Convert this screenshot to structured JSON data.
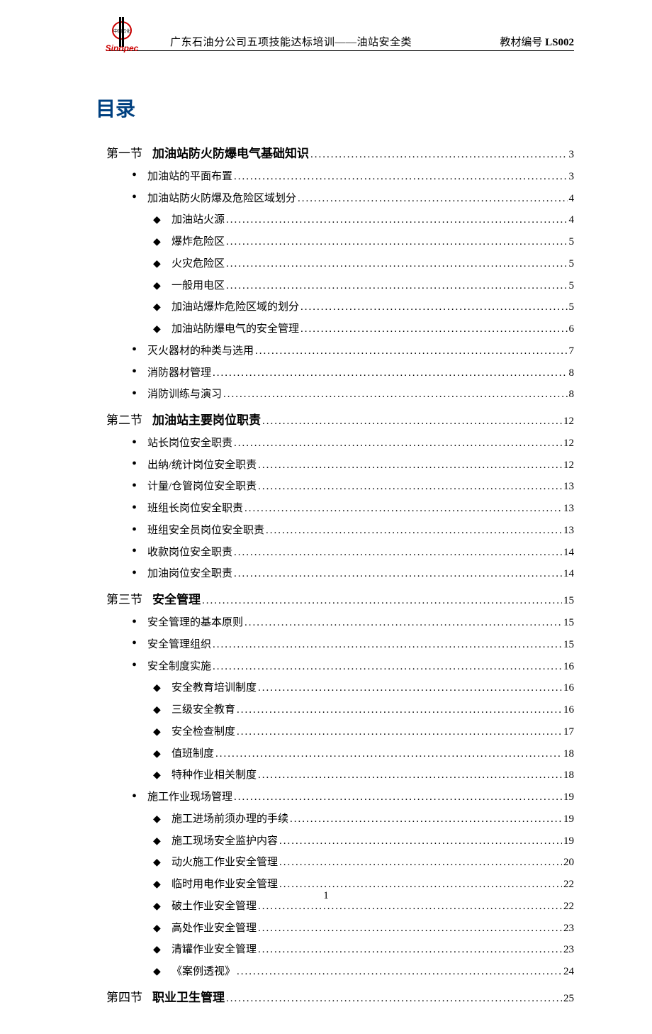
{
  "header": {
    "title": "广东石油分公司五项技能达标培训——油站安全类",
    "doc_label": "教材编号",
    "doc_code": "LS002"
  },
  "toc_title": "目录",
  "page_number": "1",
  "sections": [
    {
      "label": "第一节",
      "title": "加油站防火防爆电气基础知识",
      "page": "3",
      "items": [
        {
          "title": "加油站的平面布置",
          "page": "3"
        },
        {
          "title": "加油站防火防爆及危险区域划分",
          "page": "4",
          "children": [
            {
              "title": "加油站火源",
              "page": "4"
            },
            {
              "title": "爆炸危险区",
              "page": "5"
            },
            {
              "title": "火灾危险区",
              "page": "5"
            },
            {
              "title": "一般用电区",
              "page": "5"
            },
            {
              "title": "加油站爆炸危险区域的划分",
              "page": "5"
            },
            {
              "title": "加油站防爆电气的安全管理",
              "page": "6"
            }
          ]
        },
        {
          "title": "灭火器材的种类与选用",
          "page": "7"
        },
        {
          "title": "消防器材管理",
          "page": "8"
        },
        {
          "title": "消防训练与演习",
          "page": "8"
        }
      ]
    },
    {
      "label": "第二节",
      "title": "加油站主要岗位职责",
      "page": "12",
      "items": [
        {
          "title": "站长岗位安全职责",
          "page": "12"
        },
        {
          "title": "出纳/统计岗位安全职责",
          "page": "12"
        },
        {
          "title": "计量/仓管岗位安全职责",
          "page": "13"
        },
        {
          "title": "班组长岗位安全职责",
          "page": "13"
        },
        {
          "title": "班组安全员岗位安全职责",
          "page": "13"
        },
        {
          "title": "收款岗位安全职责",
          "page": "14"
        },
        {
          "title": "加油岗位安全职责",
          "page": "14"
        }
      ]
    },
    {
      "label": "第三节",
      "title": "安全管理",
      "page": "15",
      "items": [
        {
          "title": "安全管理的基本原则",
          "page": "15"
        },
        {
          "title": "安全管理组织",
          "page": "15"
        },
        {
          "title": "安全制度实施",
          "page": "16",
          "children": [
            {
              "title": "安全教育培训制度",
              "page": "16"
            },
            {
              "title": "三级安全教育",
              "page": "16"
            },
            {
              "title": "安全检查制度",
              "page": "17"
            },
            {
              "title": "值班制度",
              "page": "18"
            },
            {
              "title": "特种作业相关制度",
              "page": "18"
            }
          ]
        },
        {
          "title": "施工作业现场管理",
          "page": "19",
          "children": [
            {
              "title": "施工进场前须办理的手续",
              "page": "19"
            },
            {
              "title": "施工现场安全监护内容",
              "page": "19"
            },
            {
              "title": "动火施工作业安全管理",
              "page": "20"
            },
            {
              "title": "临时用电作业安全管理",
              "page": "22"
            },
            {
              "title": "破土作业安全管理",
              "page": "22"
            },
            {
              "title": "高处作业安全管理",
              "page": "23"
            },
            {
              "title": "清罐作业安全管理",
              "page": "23"
            },
            {
              "title": "《案例透视》",
              "page": "24"
            }
          ]
        }
      ]
    },
    {
      "label": "第四节",
      "title": "职业卫生管理",
      "page": "25",
      "items": []
    }
  ]
}
